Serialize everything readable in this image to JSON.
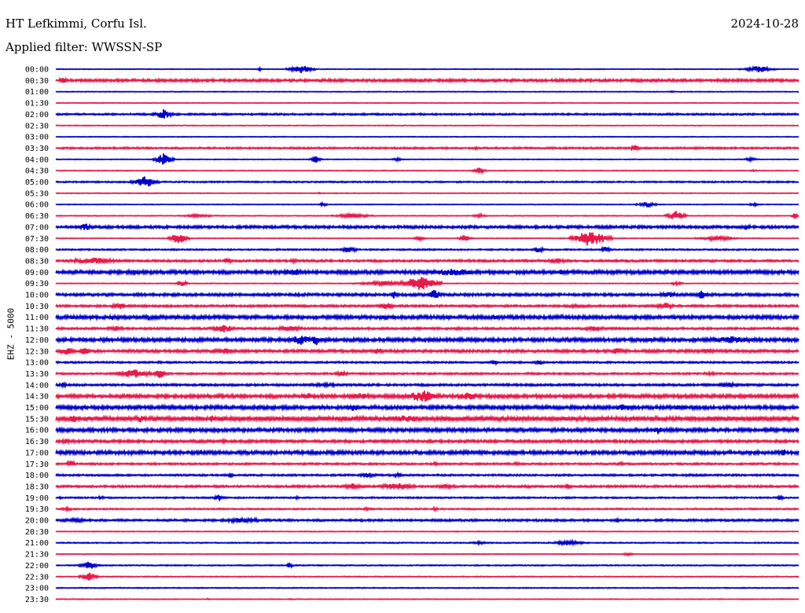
{
  "header": {
    "station": "HT Lefkimmi, Corfu Isl.",
    "date": "2024-10-28",
    "filter": "Applied filter: WWSSN-SP"
  },
  "chart_data": {
    "type": "line",
    "title": "HT Lefkimmi, Corfu Isl.",
    "ylabel": "EHZ - 5000",
    "colors": {
      "even": "#0000cc",
      "odd": "#e8194a"
    },
    "grid": false,
    "traces": [
      {
        "time": "00:00",
        "color": "#0000cc",
        "bursts": [
          [
            0.27,
            0.28,
            0.02
          ],
          [
            0.31,
            0.35,
            0.05
          ],
          [
            0.92,
            0.97,
            0.04
          ]
        ]
      },
      {
        "time": "00:30",
        "color": "#e8194a",
        "bursts": [
          [
            0.0,
            0.02,
            0.04
          ],
          [
            0.02,
            1.0,
            0.015
          ]
        ]
      },
      {
        "time": "01:00",
        "color": "#0000cc",
        "bursts": [
          [
            0.82,
            0.84,
            0.01
          ]
        ]
      },
      {
        "time": "01:30",
        "color": "#e8194a",
        "bursts": []
      },
      {
        "time": "02:00",
        "color": "#0000cc",
        "bursts": [
          [
            0.13,
            0.16,
            0.06
          ],
          [
            0.0,
            1.0,
            0.01
          ]
        ]
      },
      {
        "time": "02:30",
        "color": "#e8194a",
        "bursts": []
      },
      {
        "time": "03:00",
        "color": "#0000cc",
        "bursts": []
      },
      {
        "time": "03:30",
        "color": "#e8194a",
        "bursts": [
          [
            0.0,
            1.0,
            0.01
          ],
          [
            0.77,
            0.79,
            0.04
          ],
          [
            0.56,
            0.57,
            0.02
          ]
        ]
      },
      {
        "time": "04:00",
        "color": "#0000cc",
        "bursts": [
          [
            0.13,
            0.16,
            0.07
          ],
          [
            0.34,
            0.36,
            0.04
          ],
          [
            0.45,
            0.47,
            0.02
          ],
          [
            0.92,
            0.95,
            0.02
          ]
        ]
      },
      {
        "time": "04:30",
        "color": "#e8194a",
        "bursts": [
          [
            0.56,
            0.58,
            0.04
          ],
          [
            0.93,
            0.95,
            0.01
          ]
        ]
      },
      {
        "time": "05:00",
        "color": "#0000cc",
        "bursts": [
          [
            0.1,
            0.14,
            0.07
          ],
          [
            0.0,
            1.0,
            0.008
          ]
        ]
      },
      {
        "time": "05:30",
        "color": "#e8194a",
        "bursts": [
          [
            0.35,
            0.36,
            0.01
          ]
        ]
      },
      {
        "time": "06:00",
        "color": "#0000cc",
        "bursts": [
          [
            0.35,
            0.37,
            0.02
          ],
          [
            0.78,
            0.81,
            0.04
          ],
          [
            0.93,
            0.95,
            0.02
          ]
        ]
      },
      {
        "time": "06:30",
        "color": "#e8194a",
        "bursts": [
          [
            0.16,
            0.22,
            0.02
          ],
          [
            0.37,
            0.43,
            0.03
          ],
          [
            0.56,
            0.58,
            0.03
          ],
          [
            0.82,
            0.85,
            0.06
          ],
          [
            0.99,
            1.0,
            0.04
          ]
        ]
      },
      {
        "time": "07:00",
        "color": "#0000cc",
        "bursts": [
          [
            0.03,
            0.05,
            0.05
          ],
          [
            0.0,
            1.0,
            0.015
          ],
          [
            0.92,
            0.94,
            0.04
          ]
        ]
      },
      {
        "time": "07:30",
        "color": "#e8194a",
        "bursts": [
          [
            0.15,
            0.18,
            0.07
          ],
          [
            0.48,
            0.5,
            0.03
          ],
          [
            0.54,
            0.56,
            0.04
          ],
          [
            0.69,
            0.75,
            0.1
          ],
          [
            0.86,
            0.92,
            0.03
          ]
        ]
      },
      {
        "time": "08:00",
        "color": "#0000cc",
        "bursts": [
          [
            0.38,
            0.41,
            0.04
          ],
          [
            0.64,
            0.66,
            0.04
          ],
          [
            0.73,
            0.75,
            0.04
          ],
          [
            0.0,
            1.0,
            0.008
          ]
        ]
      },
      {
        "time": "08:30",
        "color": "#e8194a",
        "bursts": [
          [
            0.0,
            0.1,
            0.04
          ],
          [
            0.22,
            0.24,
            0.04
          ],
          [
            0.31,
            0.33,
            0.03
          ],
          [
            0.65,
            0.7,
            0.03
          ],
          [
            0.0,
            1.0,
            0.012
          ]
        ]
      },
      {
        "time": "09:00",
        "color": "#0000cc",
        "bursts": [
          [
            0.09,
            0.12,
            0.04
          ],
          [
            0.3,
            0.34,
            0.05
          ],
          [
            0.47,
            0.6,
            0.04
          ],
          [
            0.66,
            0.7,
            0.03
          ],
          [
            0.0,
            1.0,
            0.02
          ]
        ]
      },
      {
        "time": "09:30",
        "color": "#e8194a",
        "bursts": [
          [
            0.16,
            0.18,
            0.04
          ],
          [
            0.4,
            0.48,
            0.03
          ],
          [
            0.46,
            0.52,
            0.09
          ],
          [
            0.82,
            0.85,
            0.02
          ]
        ]
      },
      {
        "time": "10:00",
        "color": "#0000cc",
        "bursts": [
          [
            0.45,
            0.46,
            0.06
          ],
          [
            0.5,
            0.52,
            0.07
          ],
          [
            0.8,
            0.85,
            0.03
          ],
          [
            0.86,
            0.88,
            0.06
          ],
          [
            0.0,
            1.0,
            0.015
          ]
        ]
      },
      {
        "time": "10:30",
        "color": "#e8194a",
        "bursts": [
          [
            0.07,
            0.1,
            0.04
          ],
          [
            0.43,
            0.46,
            0.04
          ],
          [
            0.65,
            0.75,
            0.02
          ],
          [
            0.8,
            0.84,
            0.04
          ],
          [
            0.0,
            1.0,
            0.012
          ]
        ]
      },
      {
        "time": "11:00",
        "color": "#0000cc",
        "bursts": [
          [
            0.07,
            0.08,
            0.05
          ],
          [
            0.12,
            0.13,
            0.04
          ],
          [
            0.44,
            0.45,
            0.04
          ],
          [
            0.58,
            0.6,
            0.04
          ],
          [
            0.66,
            0.7,
            0.03
          ],
          [
            0.0,
            1.0,
            0.02
          ]
        ]
      },
      {
        "time": "11:30",
        "color": "#e8194a",
        "bursts": [
          [
            0.06,
            0.1,
            0.03
          ],
          [
            0.2,
            0.25,
            0.05
          ],
          [
            0.28,
            0.35,
            0.03
          ],
          [
            0.53,
            0.55,
            0.02
          ],
          [
            0.7,
            0.75,
            0.03
          ],
          [
            0.0,
            1.0,
            0.012
          ]
        ]
      },
      {
        "time": "12:00",
        "color": "#0000cc",
        "bursts": [
          [
            0.31,
            0.35,
            0.06
          ],
          [
            0.34,
            0.36,
            0.07
          ],
          [
            0.85,
            0.97,
            0.04
          ],
          [
            0.0,
            1.0,
            0.02
          ]
        ]
      },
      {
        "time": "12:30",
        "color": "#e8194a",
        "bursts": [
          [
            0.0,
            0.03,
            0.05
          ],
          [
            0.03,
            0.05,
            0.06
          ],
          [
            0.2,
            0.25,
            0.04
          ],
          [
            0.42,
            0.45,
            0.04
          ],
          [
            0.74,
            0.77,
            0.04
          ],
          [
            0.85,
            0.9,
            0.03
          ],
          [
            0.0,
            1.0,
            0.015
          ]
        ]
      },
      {
        "time": "13:00",
        "color": "#0000cc",
        "bursts": [
          [
            0.13,
            0.15,
            0.02
          ],
          [
            0.58,
            0.6,
            0.03
          ],
          [
            0.64,
            0.66,
            0.03
          ],
          [
            0.0,
            1.0,
            0.01
          ]
        ]
      },
      {
        "time": "13:30",
        "color": "#e8194a",
        "bursts": [
          [
            0.07,
            0.14,
            0.05
          ],
          [
            0.13,
            0.15,
            0.06
          ],
          [
            0.37,
            0.4,
            0.03
          ],
          [
            0.63,
            0.65,
            0.02
          ],
          [
            0.86,
            0.9,
            0.02
          ],
          [
            0.0,
            1.0,
            0.01
          ]
        ]
      },
      {
        "time": "14:00",
        "color": "#0000cc",
        "bursts": [
          [
            0.0,
            0.02,
            0.03
          ],
          [
            0.3,
            0.43,
            0.02
          ],
          [
            0.88,
            0.93,
            0.03
          ],
          [
            0.0,
            1.0,
            0.012
          ]
        ]
      },
      {
        "time": "14:30",
        "color": "#e8194a",
        "bursts": [
          [
            0.07,
            0.13,
            0.03
          ],
          [
            0.32,
            0.36,
            0.04
          ],
          [
            0.37,
            0.45,
            0.04
          ],
          [
            0.46,
            0.53,
            0.07
          ],
          [
            0.53,
            0.58,
            0.05
          ],
          [
            0.62,
            0.65,
            0.02
          ],
          [
            0.0,
            1.0,
            0.02
          ]
        ]
      },
      {
        "time": "15:00",
        "color": "#0000cc",
        "bursts": [
          [
            0.08,
            0.1,
            0.02
          ],
          [
            0.38,
            0.42,
            0.04
          ],
          [
            0.44,
            0.46,
            0.03
          ],
          [
            0.74,
            0.79,
            0.04
          ],
          [
            0.82,
            0.86,
            0.03
          ],
          [
            0.0,
            1.0,
            0.02
          ]
        ]
      },
      {
        "time": "15:30",
        "color": "#e8194a",
        "bursts": [
          [
            0.0,
            0.05,
            0.04
          ],
          [
            0.1,
            0.13,
            0.05
          ],
          [
            0.2,
            0.22,
            0.04
          ],
          [
            0.3,
            0.35,
            0.03
          ],
          [
            0.42,
            0.52,
            0.04
          ],
          [
            0.8,
            0.85,
            0.03
          ],
          [
            0.0,
            1.0,
            0.025
          ]
        ]
      },
      {
        "time": "16:00",
        "color": "#0000cc",
        "bursts": [
          [
            0.14,
            0.15,
            0.02
          ],
          [
            0.35,
            0.37,
            0.02
          ],
          [
            0.69,
            0.72,
            0.03
          ],
          [
            0.76,
            0.8,
            0.02
          ],
          [
            0.8,
            0.82,
            0.05
          ],
          [
            0.95,
            0.97,
            0.02
          ],
          [
            0.0,
            1.0,
            0.02
          ]
        ]
      },
      {
        "time": "16:30",
        "color": "#e8194a",
        "bursts": [
          [
            0.0,
            0.03,
            0.03
          ],
          [
            0.2,
            0.25,
            0.02
          ],
          [
            0.38,
            0.4,
            0.02
          ],
          [
            0.0,
            1.0,
            0.015
          ]
        ]
      },
      {
        "time": "17:00",
        "color": "#0000cc",
        "bursts": [
          [
            0.09,
            0.11,
            0.03
          ],
          [
            0.14,
            0.16,
            0.02
          ],
          [
            0.19,
            0.2,
            0.04
          ],
          [
            0.54,
            0.6,
            0.02
          ],
          [
            0.67,
            0.7,
            0.02
          ],
          [
            0.86,
            0.89,
            0.02
          ],
          [
            0.97,
            0.99,
            0.04
          ],
          [
            0.0,
            1.0,
            0.02
          ]
        ]
      },
      {
        "time": "17:30",
        "color": "#e8194a",
        "bursts": [
          [
            0.01,
            0.03,
            0.04
          ],
          [
            0.5,
            0.52,
            0.02
          ],
          [
            0.61,
            0.63,
            0.02
          ],
          [
            0.75,
            0.77,
            0.02
          ],
          [
            0.0,
            1.0,
            0.01
          ]
        ]
      },
      {
        "time": "18:00",
        "color": "#0000cc",
        "bursts": [
          [
            0.23,
            0.24,
            0.03
          ],
          [
            0.4,
            0.44,
            0.03
          ],
          [
            0.45,
            0.47,
            0.03
          ],
          [
            0.84,
            0.86,
            0.02
          ],
          [
            0.0,
            1.0,
            0.01
          ]
        ]
      },
      {
        "time": "18:30",
        "color": "#e8194a",
        "bursts": [
          [
            0.38,
            0.42,
            0.04
          ],
          [
            0.42,
            0.5,
            0.04
          ],
          [
            0.5,
            0.55,
            0.03
          ],
          [
            0.6,
            0.66,
            0.02
          ],
          [
            0.68,
            0.7,
            0.03
          ],
          [
            0.0,
            1.0,
            0.012
          ]
        ]
      },
      {
        "time": "19:00",
        "color": "#0000cc",
        "bursts": [
          [
            0.0,
            0.01,
            0.02
          ],
          [
            0.05,
            0.07,
            0.02
          ],
          [
            0.21,
            0.23,
            0.04
          ],
          [
            0.32,
            0.33,
            0.02
          ],
          [
            0.68,
            0.7,
            0.02
          ],
          [
            0.97,
            0.98,
            0.04
          ],
          [
            0.0,
            1.0,
            0.008
          ]
        ]
      },
      {
        "time": "19:30",
        "color": "#e8194a",
        "bursts": [
          [
            0.0,
            0.03,
            0.02
          ],
          [
            0.41,
            0.43,
            0.02
          ],
          [
            0.5,
            0.52,
            0.02
          ],
          [
            0.0,
            1.0,
            0.008
          ]
        ]
      },
      {
        "time": "20:00",
        "color": "#0000cc",
        "bursts": [
          [
            0.0,
            0.05,
            0.03
          ],
          [
            0.2,
            0.3,
            0.03
          ],
          [
            0.4,
            0.42,
            0.02
          ],
          [
            0.75,
            0.76,
            0.03
          ],
          [
            0.0,
            1.0,
            0.012
          ]
        ]
      },
      {
        "time": "20:30",
        "color": "#e8194a",
        "bursts": []
      },
      {
        "time": "21:00",
        "color": "#0000cc",
        "bursts": [
          [
            0.55,
            0.59,
            0.02
          ],
          [
            0.66,
            0.72,
            0.03
          ],
          [
            0.0,
            1.0,
            0.006
          ]
        ]
      },
      {
        "time": "21:30",
        "color": "#e8194a",
        "bursts": [
          [
            0.76,
            0.78,
            0.02
          ]
        ]
      },
      {
        "time": "22:00",
        "color": "#0000cc",
        "bursts": [
          [
            0.03,
            0.06,
            0.05
          ],
          [
            0.31,
            0.32,
            0.04
          ],
          [
            0.0,
            1.0,
            0.006
          ]
        ]
      },
      {
        "time": "22:30",
        "color": "#e8194a",
        "bursts": [
          [
            0.03,
            0.06,
            0.05
          ],
          [
            0.0,
            1.0,
            0.005
          ]
        ]
      },
      {
        "time": "23:00",
        "color": "#0000cc",
        "bursts": [
          [
            0.0,
            1.0,
            0.005
          ]
        ]
      },
      {
        "time": "23:30",
        "color": "#e8194a",
        "bursts": [
          [
            0.2,
            0.21,
            0.01
          ],
          [
            0.31,
            0.32,
            0.01
          ]
        ]
      }
    ]
  }
}
